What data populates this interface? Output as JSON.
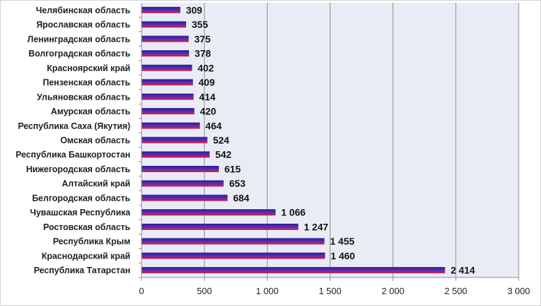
{
  "chart_data": {
    "type": "bar",
    "orientation": "horizontal",
    "categories": [
      "Челябинская область",
      "Ярославская область",
      "Ленинградская область",
      "Волгоградская область",
      "Красноярский край",
      "Пензенская область",
      "Ульяновская область",
      "Амурская область",
      "Республика Саха (Якутия)",
      "Омская область",
      "Республика Башкортостан",
      "Нижегородская область",
      "Алтайский край",
      "Белгородская область",
      "Чувашская Республика",
      "Ростовская область",
      "Республика Крым",
      "Краснодарский край",
      "Республика Татарстан"
    ],
    "values": [
      309,
      355,
      375,
      378,
      402,
      409,
      414,
      420,
      464,
      524,
      542,
      615,
      653,
      684,
      1066,
      1247,
      1455,
      1460,
      2414
    ],
    "value_labels": [
      "309",
      "355",
      "375",
      "378",
      "402",
      "409",
      "414",
      "420",
      "464",
      "524",
      "542",
      "615",
      "653",
      "684",
      "1 066",
      "1 247",
      "1 455",
      "1 460",
      "2 414"
    ],
    "x_ticks": [
      0,
      500,
      1000,
      1500,
      2000,
      2500,
      3000
    ],
    "x_tick_labels": [
      "0",
      "500",
      "1 000",
      "1 500",
      "2 000",
      "2 500",
      "3 000"
    ],
    "xlim": [
      0,
      3000
    ],
    "grid": true,
    "legend": "none",
    "title": "",
    "xlabel": "",
    "ylabel": "",
    "colors": {
      "plot_background": "#e9ecf5",
      "gridline": "#8c8c8c",
      "bar_top": "#2a1a9c",
      "bar_mid": "#5a2db0",
      "bar_bottom": "#d81e4a",
      "axis": "#8c8c8c"
    }
  }
}
